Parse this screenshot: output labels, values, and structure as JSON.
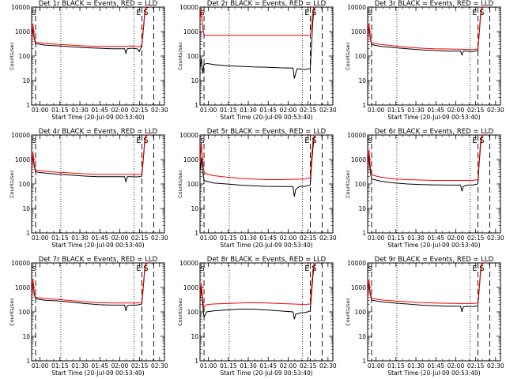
{
  "figure": {
    "panel_title_suffix": "BLACK = Events, RED = LLD",
    "xlabel": "Start Time (20-Jul-09 00:53:40)",
    "ylabel": "Counts/sec",
    "x_tick_labels": [
      "01:00",
      "01:15",
      "01:30",
      "01:45",
      "02:00",
      "02:15",
      "02:30"
    ],
    "y_tick_labels": [
      "1",
      "10",
      "100",
      "1000",
      "10000"
    ],
    "marker_labels": [
      "E",
      "S"
    ],
    "series_colors": {
      "events": "#000000",
      "lld": "#ff0000"
    }
  },
  "chart_data": [
    {
      "type": "line",
      "title": "Det 1r",
      "xlabel": "Start Time (20-Jul-09 00:53:40)",
      "ylabel": "Counts/sec",
      "x_unit": "minutes after 00:53:40",
      "xlim": [
        0,
        100
      ],
      "ylim": [
        1,
        10000
      ],
      "yscale": "log",
      "dotted_lines_x": [
        22,
        77
      ],
      "dashed_lines_x": [
        3,
        83,
        92
      ],
      "grid": false,
      "series": [
        {
          "name": "Events",
          "color": "#000000",
          "x": [
            0,
            1,
            2,
            3,
            5,
            10,
            20,
            30,
            40,
            50,
            60,
            70,
            71,
            72,
            75,
            79,
            80,
            81,
            82,
            83,
            84,
            85,
            86,
            87,
            88
          ],
          "y": [
            400,
            1500,
            500,
            320,
            310,
            280,
            260,
            240,
            220,
            210,
            200,
            200,
            130,
            200,
            210,
            200,
            190,
            150,
            200,
            250,
            1000,
            4000,
            9000,
            9500,
            9600
          ]
        },
        {
          "name": "LLD",
          "color": "#ff0000",
          "x": [
            0,
            1,
            2,
            3,
            5,
            10,
            20,
            30,
            40,
            50,
            60,
            70,
            75,
            79,
            80,
            81,
            82,
            83,
            84,
            85,
            86,
            87,
            88
          ],
          "y": [
            500,
            2000,
            600,
            380,
            360,
            330,
            300,
            280,
            260,
            250,
            250,
            250,
            260,
            250,
            240,
            240,
            250,
            300,
            1200,
            5000,
            10000,
            10000,
            10000
          ]
        }
      ]
    },
    {
      "type": "line",
      "title": "Det 2r",
      "xlabel": "Start Time (20-Jul-09 00:53:40)",
      "ylabel": "Counts/sec",
      "x_unit": "minutes after 00:53:40",
      "xlim": [
        0,
        100
      ],
      "ylim": [
        1,
        10000
      ],
      "yscale": "log",
      "dotted_lines_x": [
        22,
        77
      ],
      "dashed_lines_x": [
        3,
        83,
        92
      ],
      "grid": false,
      "series": [
        {
          "name": "Events",
          "color": "#000000",
          "x": [
            0,
            1,
            2,
            3,
            5,
            10,
            20,
            30,
            40,
            50,
            60,
            70,
            71,
            72,
            73,
            75,
            79,
            81,
            83,
            84,
            85,
            86,
            87
          ],
          "y": [
            30,
            80,
            20,
            45,
            50,
            45,
            40,
            38,
            36,
            35,
            33,
            32,
            12,
            20,
            30,
            30,
            28,
            30,
            30,
            300,
            3000,
            9000,
            9500
          ]
        },
        {
          "name": "LLD",
          "color": "#ff0000",
          "x": [
            0,
            1,
            2,
            3,
            5,
            20,
            40,
            60,
            83,
            84,
            85,
            86,
            87
          ],
          "y": [
            3000,
            8000,
            1500,
            700,
            700,
            700,
            700,
            700,
            700,
            2000,
            8000,
            10000,
            10000
          ]
        }
      ]
    },
    {
      "type": "line",
      "title": "Det 3r",
      "xlabel": "Start Time (20-Jul-09 00:53:40)",
      "ylabel": "Counts/sec",
      "x_unit": "minutes after 00:53:40",
      "xlim": [
        0,
        100
      ],
      "ylim": [
        1,
        10000
      ],
      "yscale": "log",
      "dotted_lines_x": [
        22,
        77
      ],
      "dashed_lines_x": [
        3,
        83,
        92
      ],
      "grid": false,
      "series": [
        {
          "name": "Events",
          "color": "#000000",
          "x": [
            0,
            1,
            2,
            3,
            5,
            10,
            20,
            30,
            40,
            50,
            60,
            70,
            71,
            72,
            75,
            79,
            81,
            83,
            84,
            85,
            86,
            87
          ],
          "y": [
            400,
            1800,
            500,
            300,
            280,
            250,
            220,
            200,
            180,
            170,
            160,
            160,
            110,
            160,
            160,
            150,
            160,
            170,
            800,
            4000,
            9000,
            9500
          ]
        },
        {
          "name": "LLD",
          "color": "#ff0000",
          "x": [
            0,
            1,
            2,
            3,
            5,
            10,
            20,
            30,
            40,
            50,
            60,
            70,
            79,
            81,
            83,
            84,
            85,
            86,
            87
          ],
          "y": [
            500,
            2200,
            600,
            350,
            330,
            300,
            260,
            230,
            210,
            200,
            195,
            190,
            185,
            190,
            200,
            1000,
            5000,
            10000,
            10000
          ]
        }
      ]
    },
    {
      "type": "line",
      "title": "Det 4r",
      "xlabel": "Start Time (20-Jul-09 00:53:40)",
      "ylabel": "Counts/sec",
      "x_unit": "minutes after 00:53:40",
      "xlim": [
        0,
        100
      ],
      "ylim": [
        1,
        10000
      ],
      "yscale": "log",
      "dotted_lines_x": [
        22,
        77
      ],
      "dashed_lines_x": [
        3,
        83,
        92
      ],
      "grid": false,
      "series": [
        {
          "name": "Events",
          "color": "#000000",
          "x": [
            0,
            1,
            2,
            3,
            5,
            10,
            20,
            30,
            40,
            50,
            60,
            70,
            71,
            72,
            75,
            79,
            81,
            83,
            84,
            85,
            86,
            87
          ],
          "y": [
            400,
            1500,
            500,
            320,
            300,
            280,
            250,
            230,
            210,
            200,
            200,
            200,
            120,
            200,
            200,
            195,
            200,
            210,
            900,
            4000,
            9000,
            9500
          ]
        },
        {
          "name": "LLD",
          "color": "#ff0000",
          "x": [
            0,
            1,
            2,
            3,
            5,
            10,
            20,
            30,
            40,
            50,
            60,
            70,
            79,
            81,
            83,
            84,
            85,
            86,
            87
          ],
          "y": [
            500,
            2000,
            600,
            380,
            360,
            330,
            300,
            280,
            260,
            250,
            250,
            250,
            245,
            250,
            260,
            1100,
            5000,
            10000,
            10000
          ]
        }
      ]
    },
    {
      "type": "line",
      "title": "Det 5r",
      "xlabel": "Start Time (20-Jul-09 00:53:40)",
      "ylabel": "Counts/sec",
      "x_unit": "minutes after 00:53:40",
      "xlim": [
        0,
        100
      ],
      "ylim": [
        1,
        10000
      ],
      "yscale": "log",
      "dotted_lines_x": [
        22,
        77
      ],
      "dashed_lines_x": [
        3,
        83,
        92
      ],
      "grid": false,
      "series": [
        {
          "name": "Events",
          "color": "#000000",
          "x": [
            0,
            1,
            2,
            3,
            5,
            10,
            20,
            30,
            40,
            50,
            60,
            70,
            71,
            72,
            75,
            79,
            81,
            83,
            84,
            85,
            86,
            87
          ],
          "y": [
            300,
            1200,
            300,
            140,
            130,
            110,
            100,
            90,
            85,
            80,
            78,
            78,
            30,
            60,
            80,
            80,
            85,
            90,
            600,
            3000,
            8000,
            9000
          ]
        },
        {
          "name": "LLD",
          "color": "#ff0000",
          "x": [
            0,
            1,
            2,
            3,
            5,
            10,
            20,
            30,
            40,
            50,
            60,
            70,
            79,
            81,
            83,
            84,
            85,
            86,
            87
          ],
          "y": [
            700,
            5000,
            800,
            300,
            260,
            220,
            190,
            170,
            160,
            150,
            150,
            155,
            160,
            170,
            180,
            1200,
            6000,
            10000,
            10000
          ]
        }
      ]
    },
    {
      "type": "line",
      "title": "Det 6r",
      "xlabel": "Start Time (20-Jul-09 00:53:40)",
      "ylabel": "Counts/sec",
      "x_unit": "minutes after 00:53:40",
      "xlim": [
        0,
        100
      ],
      "ylim": [
        1,
        10000
      ],
      "yscale": "log",
      "dotted_lines_x": [
        22,
        77
      ],
      "dashed_lines_x": [
        3,
        83,
        92
      ],
      "grid": false,
      "series": [
        {
          "name": "Events",
          "color": "#000000",
          "x": [
            0,
            1,
            2,
            3,
            5,
            10,
            20,
            30,
            40,
            50,
            60,
            70,
            71,
            72,
            75,
            79,
            81,
            83,
            84,
            85,
            86,
            87
          ],
          "y": [
            300,
            1500,
            300,
            160,
            150,
            130,
            110,
            100,
            95,
            92,
            90,
            90,
            50,
            80,
            90,
            90,
            95,
            100,
            700,
            3500,
            8500,
            9500
          ]
        },
        {
          "name": "LLD",
          "color": "#ff0000",
          "x": [
            0,
            1,
            2,
            3,
            5,
            10,
            20,
            30,
            40,
            50,
            60,
            70,
            79,
            81,
            83,
            84,
            85,
            86,
            87
          ],
          "y": [
            500,
            2500,
            500,
            240,
            220,
            190,
            160,
            150,
            145,
            140,
            140,
            140,
            140,
            145,
            150,
            1000,
            5000,
            10000,
            10000
          ]
        }
      ]
    },
    {
      "type": "line",
      "title": "Det 7r",
      "xlabel": "Start Time (20-Jul-09 00:53:40)",
      "ylabel": "Counts/sec",
      "x_unit": "minutes after 00:53:40",
      "xlim": [
        0,
        100
      ],
      "ylim": [
        1,
        10000
      ],
      "yscale": "log",
      "dotted_lines_x": [
        22,
        77
      ],
      "dashed_lines_x": [
        3,
        83,
        92
      ],
      "grid": false,
      "series": [
        {
          "name": "Events",
          "color": "#000000",
          "x": [
            0,
            1,
            2,
            3,
            5,
            10,
            20,
            30,
            40,
            50,
            60,
            70,
            71,
            72,
            75,
            79,
            81,
            83,
            84,
            85,
            86,
            87
          ],
          "y": [
            400,
            1800,
            500,
            350,
            330,
            300,
            280,
            250,
            220,
            200,
            190,
            190,
            110,
            180,
            190,
            190,
            200,
            210,
            900,
            4000,
            9000,
            9500
          ]
        },
        {
          "name": "LLD",
          "color": "#ff0000",
          "x": [
            0,
            1,
            2,
            3,
            5,
            10,
            20,
            30,
            40,
            50,
            60,
            70,
            79,
            81,
            83,
            84,
            85,
            86,
            87
          ],
          "y": [
            500,
            2300,
            600,
            400,
            380,
            350,
            320,
            290,
            260,
            240,
            230,
            230,
            230,
            240,
            250,
            1100,
            5000,
            10000,
            10000
          ]
        }
      ]
    },
    {
      "type": "line",
      "title": "Det 8r",
      "xlabel": "Start Time (20-Jul-09 00:53:40)",
      "ylabel": "Counts/sec",
      "x_unit": "minutes after 00:53:40",
      "xlim": [
        0,
        100
      ],
      "ylim": [
        1,
        10000
      ],
      "yscale": "log",
      "dotted_lines_x": [
        22,
        77
      ],
      "dashed_lines_x": [
        3,
        83,
        92
      ],
      "grid": false,
      "series": [
        {
          "name": "Events",
          "color": "#000000",
          "x": [
            0,
            1,
            2,
            3,
            4,
            5,
            10,
            20,
            30,
            40,
            50,
            60,
            70,
            71,
            72,
            75,
            79,
            81,
            83,
            84,
            85,
            86,
            87
          ],
          "y": [
            300,
            900,
            200,
            60,
            80,
            100,
            110,
            120,
            130,
            130,
            120,
            110,
            100,
            50,
            80,
            90,
            95,
            100,
            110,
            600,
            3000,
            8000,
            9000
          ]
        },
        {
          "name": "LLD",
          "color": "#ff0000",
          "x": [
            0,
            1,
            2,
            3,
            4,
            5,
            10,
            20,
            30,
            40,
            50,
            60,
            70,
            79,
            81,
            83,
            84,
            85,
            86,
            87
          ],
          "y": [
            400,
            1500,
            300,
            150,
            180,
            200,
            210,
            220,
            230,
            240,
            230,
            220,
            210,
            200,
            205,
            210,
            1100,
            5000,
            10000,
            10000
          ]
        }
      ]
    },
    {
      "type": "line",
      "title": "Det 9r",
      "xlabel": "Start Time (20-Jul-09 00:53:40)",
      "ylabel": "Counts/sec",
      "x_unit": "minutes after 00:53:40",
      "xlim": [
        0,
        100
      ],
      "ylim": [
        1,
        10000
      ],
      "yscale": "log",
      "dotted_lines_x": [
        22,
        77
      ],
      "dashed_lines_x": [
        3,
        83,
        92
      ],
      "grid": false,
      "series": [
        {
          "name": "Events",
          "color": "#000000",
          "x": [
            0,
            1,
            2,
            3,
            5,
            10,
            20,
            30,
            40,
            50,
            60,
            70,
            71,
            72,
            75,
            79,
            81,
            83,
            84,
            85,
            86,
            87
          ],
          "y": [
            400,
            1600,
            500,
            300,
            290,
            260,
            230,
            210,
            190,
            180,
            170,
            170,
            100,
            160,
            170,
            165,
            170,
            180,
            800,
            4000,
            9000,
            9500
          ]
        },
        {
          "name": "LLD",
          "color": "#ff0000",
          "x": [
            0,
            1,
            2,
            3,
            5,
            10,
            20,
            30,
            40,
            50,
            60,
            70,
            79,
            81,
            83,
            84,
            85,
            86,
            87
          ],
          "y": [
            500,
            2100,
            600,
            360,
            340,
            310,
            280,
            260,
            240,
            230,
            225,
            220,
            220,
            225,
            235,
            1000,
            5000,
            10000,
            10000
          ]
        }
      ]
    }
  ]
}
